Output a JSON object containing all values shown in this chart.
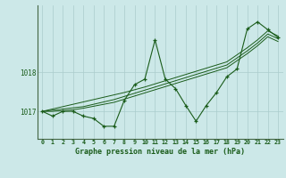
{
  "title": "Graphe pression niveau de la mer (hPa)",
  "bg_color": "#cce8e8",
  "grid_color": "#aacccc",
  "line_color": "#1a5c1a",
  "marker_color": "#1a5c1a",
  "ylabel_ticks": [
    1017,
    1018
  ],
  "xlim": [
    -0.5,
    23.5
  ],
  "ylim": [
    1016.3,
    1019.7
  ],
  "xticks": [
    0,
    1,
    2,
    3,
    4,
    5,
    6,
    7,
    8,
    9,
    10,
    11,
    12,
    13,
    14,
    15,
    16,
    17,
    18,
    19,
    20,
    21,
    22,
    23
  ],
  "series": {
    "main": [
      1017.0,
      1016.88,
      1017.0,
      1017.0,
      1016.88,
      1016.82,
      1016.62,
      1016.62,
      1017.28,
      1017.68,
      1017.82,
      1018.82,
      1017.82,
      1017.58,
      1017.15,
      1016.75,
      1017.15,
      1017.48,
      1017.88,
      1018.08,
      1019.1,
      1019.28,
      1019.08,
      1018.88
    ],
    "line1": [
      1017.0,
      1017.06,
      1017.12,
      1017.18,
      1017.24,
      1017.3,
      1017.36,
      1017.42,
      1017.48,
      1017.55,
      1017.62,
      1017.7,
      1017.78,
      1017.86,
      1017.94,
      1018.02,
      1018.1,
      1018.18,
      1018.26,
      1018.44,
      1018.62,
      1018.82,
      1019.05,
      1018.92
    ],
    "line2": [
      1017.0,
      1017.03,
      1017.06,
      1017.09,
      1017.12,
      1017.18,
      1017.24,
      1017.3,
      1017.38,
      1017.46,
      1017.54,
      1017.62,
      1017.7,
      1017.78,
      1017.86,
      1017.94,
      1018.02,
      1018.1,
      1018.18,
      1018.36,
      1018.54,
      1018.74,
      1018.97,
      1018.85
    ],
    "line3": [
      1017.0,
      1017.0,
      1017.02,
      1017.04,
      1017.08,
      1017.13,
      1017.18,
      1017.23,
      1017.31,
      1017.39,
      1017.47,
      1017.55,
      1017.63,
      1017.71,
      1017.79,
      1017.87,
      1017.95,
      1018.03,
      1018.11,
      1018.29,
      1018.47,
      1018.67,
      1018.9,
      1018.78
    ]
  }
}
